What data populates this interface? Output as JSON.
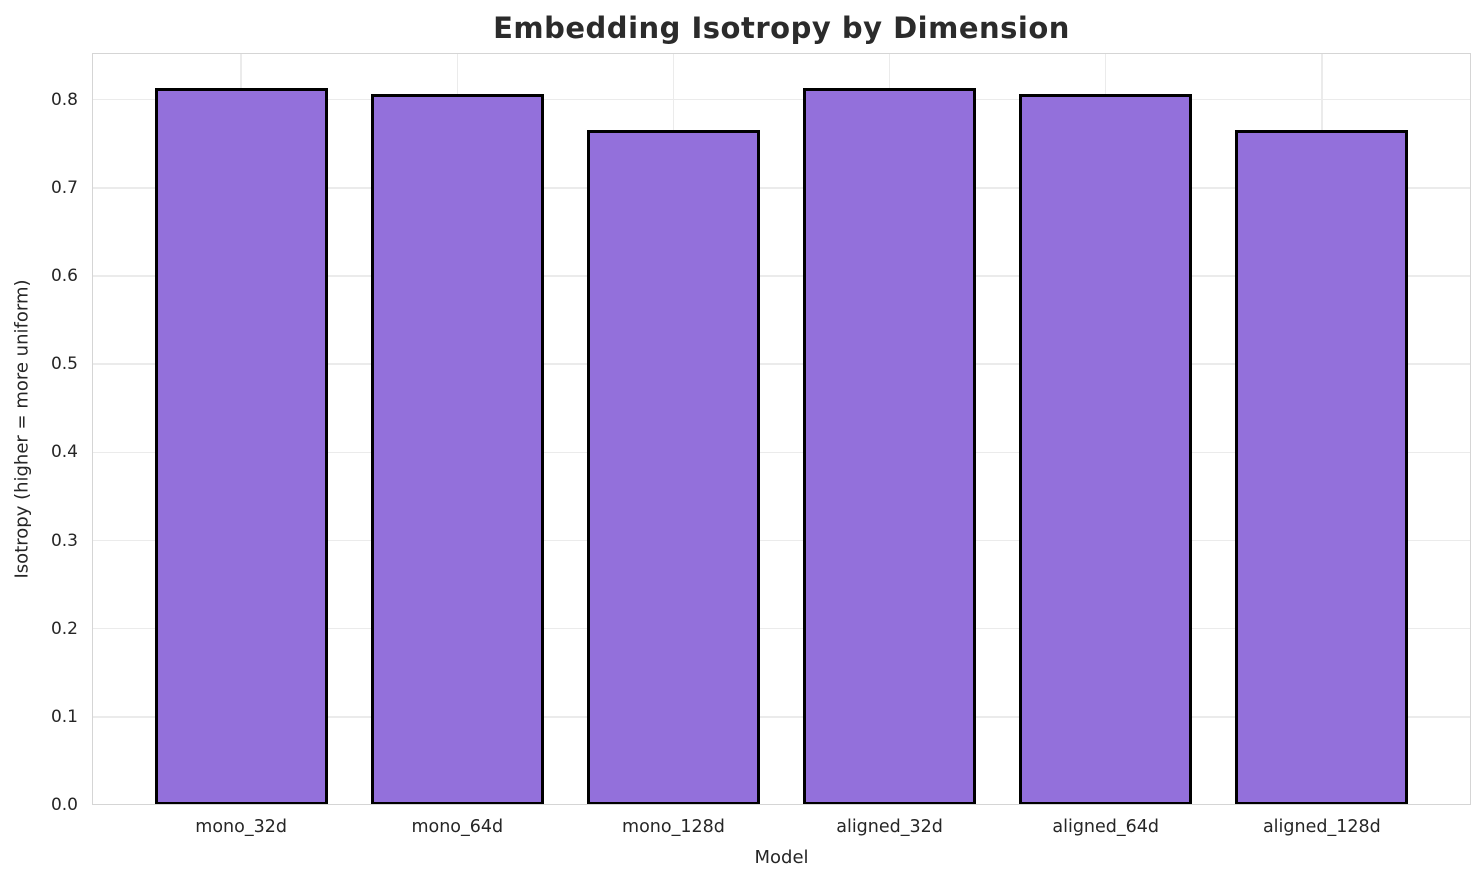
{
  "chart_data": {
    "type": "bar",
    "title": "Embedding Isotropy by Dimension",
    "xlabel": "Model",
    "ylabel": "Isotropy (higher = more uniform)",
    "categories": [
      "mono_32d",
      "mono_64d",
      "mono_128d",
      "aligned_32d",
      "aligned_64d",
      "aligned_128d"
    ],
    "values": [
      0.813,
      0.807,
      0.766,
      0.813,
      0.807,
      0.766
    ],
    "ylim": [
      0,
      0.853
    ],
    "xlim": [
      -0.69,
      5.69
    ],
    "yticks": [
      0.0,
      0.1,
      0.2,
      0.3,
      0.4,
      0.5,
      0.6,
      0.7,
      0.8
    ],
    "ytick_labels": [
      "0.0",
      "0.1",
      "0.2",
      "0.3",
      "0.4",
      "0.5",
      "0.6",
      "0.7",
      "0.8"
    ],
    "bar_width": 0.8,
    "grid": true,
    "legend": "none",
    "colors": {
      "bar_fill": "#9370DB",
      "bar_edge": "#000000",
      "grid_line": "#ebebeb",
      "spine": "#d5d5d5",
      "tick_text": "#262626",
      "title_text": "#2b2b2b",
      "background": "#ffffff"
    }
  }
}
